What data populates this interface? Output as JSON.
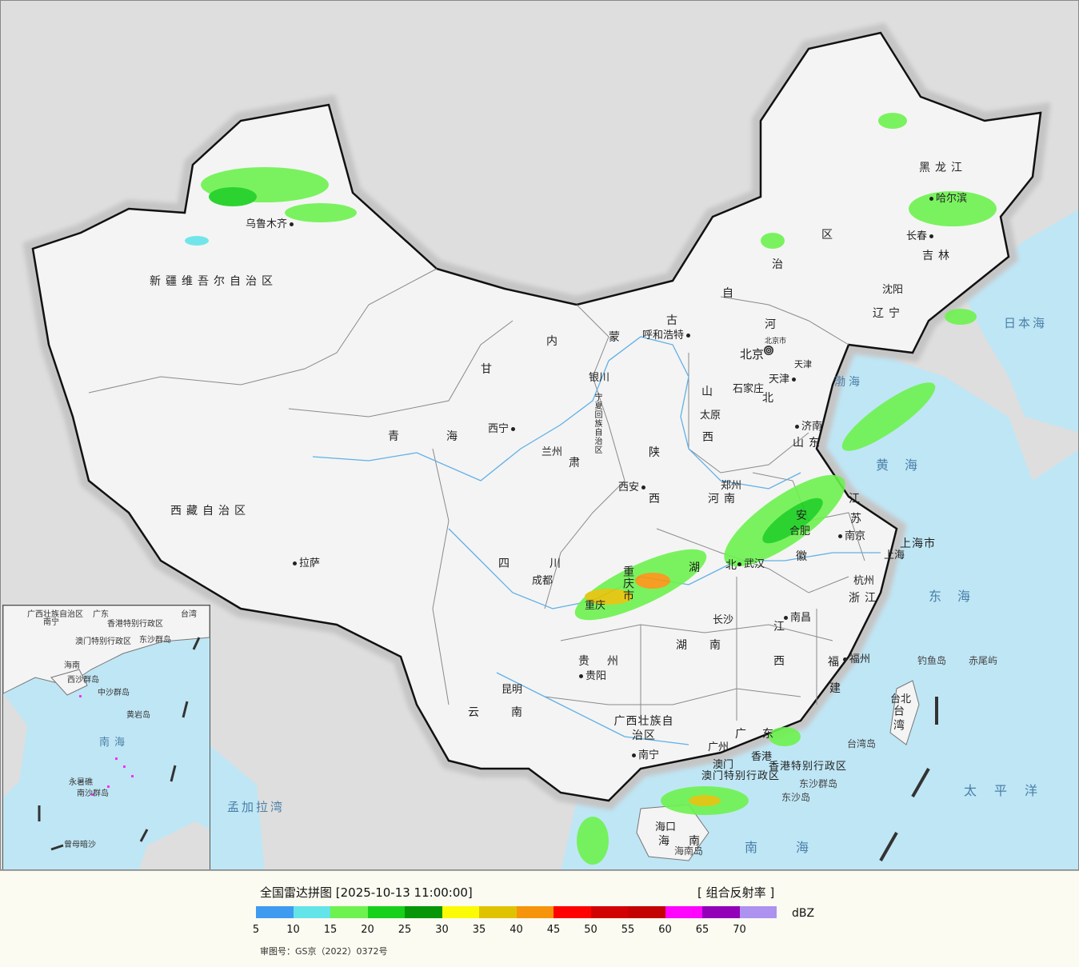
{
  "colors": {
    "land": "#f4f4f4",
    "sea": "#bfe6f5",
    "foreign": "#dedede",
    "border": "#111111",
    "province_border": "#8a8a8a",
    "river": "#5fb0e6",
    "panel_bg": "#fbfbf1"
  },
  "cities": {
    "urumqi": "乌鲁木齐",
    "harbin": "哈尔滨",
    "changchun": "长春",
    "shenyang": "沈阳",
    "hohhot": "呼和浩特",
    "beijing": "北京",
    "beijing_city": "北京市",
    "tianjin": "天津",
    "tianjin_city": "天津",
    "shijiazhuang": "石家庄",
    "taiyuan": "太原",
    "jinan": "济南",
    "yinchuan": "银川",
    "xining": "西宁",
    "lanzhou": "兰州",
    "xian": "西安",
    "zhengzhou": "郑州",
    "hefei": "合肥",
    "nanjing": "南京",
    "shanghai": "上海",
    "hangzhou": "杭州",
    "wuhan": "武汉",
    "chengdu": "成都",
    "chongqing": "重庆",
    "lhasa": "拉萨",
    "changsha": "长沙",
    "nanchang": "南昌",
    "fuzhou": "福州",
    "guiyang": "贵阳",
    "kunming": "昆明",
    "nanning": "南宁",
    "guangzhou": "广州",
    "hongkong": "香港",
    "macau": "澳门",
    "haikou": "海口",
    "taipei": "台北"
  },
  "provinces": {
    "xinjiang": "新疆维吾尔自治区",
    "xizang": "西藏自治区",
    "qinghai_1": "青",
    "qinghai_2": "海",
    "gansu_1": "甘",
    "gansu_2": "肃",
    "neimenggu_1": "内",
    "neimenggu_2": "蒙",
    "neimenggu_3": "古",
    "neimenggu_4": "自",
    "neimenggu_5": "治",
    "neimenggu_6": "区",
    "heilongjiang": "黑龙江",
    "jilin": "吉林",
    "liaoning": "辽宁",
    "hebei_1": "河",
    "hebei_2": "北",
    "shanxi_1": "山",
    "shanxi_2": "西",
    "shandong": "山东",
    "shaanxi_1": "陕",
    "shaanxi_2": "西",
    "ningxia": "宁夏回族自治区",
    "henan": "河南",
    "jiangsu_1": "江",
    "jiangsu_2": "苏",
    "anhui_1": "安",
    "anhui_2": "徽",
    "shanghai_city": "上海市",
    "zhejiang": "浙江",
    "hubei_1": "湖",
    "hubei_2": "北",
    "chongqing_city": "重庆市",
    "sichuan": "四川",
    "hunan": "湖南",
    "jiangxi_1": "江",
    "jiangxi_2": "西",
    "fujian_1": "福",
    "fujian_2": "建",
    "guizhou": "贵州",
    "yunnan": "云南",
    "guangxi": "广西壮族自治区",
    "guangdong": "广东",
    "hk_sar": "香港特别行政区",
    "macau_sar": "澳门特别行政区",
    "hainan_1": "海",
    "hainan_2": "南",
    "hainan_island": "海南岛",
    "taiwan": "台湾"
  },
  "seas": {
    "bohai": "渤海",
    "huanghai": "黄海",
    "donghai": "东海",
    "nanhai": "南海",
    "japan_sea": "日本海",
    "pacific": "太平洋",
    "bengal": "孟加拉湾"
  },
  "islands": {
    "diaoyu": "钓鱼岛",
    "chiwei": "赤尾屿",
    "taiwan_island": "台湾岛",
    "dongsha_group": "东沙群岛",
    "dongsha": "东沙岛"
  },
  "inset": {
    "guangxi": "广西壮族自治区",
    "nanning": "南宁",
    "guangdong": "广东",
    "hk": "香港特别行政区",
    "macau": "澳门特别行政区",
    "taiwan": "台湾",
    "dongsha": "东沙群岛",
    "hainan": "海南",
    "xisha": "西沙群岛",
    "zhongsha": "中沙群岛",
    "huangyan": "黄岩岛",
    "nansha": "南沙群岛",
    "yongshu": "永暑礁",
    "zengmu": "曾母暗沙",
    "nanhai": "南海"
  },
  "legend": {
    "title": "全国雷达拼图 [2025-10-13 11:00:00]",
    "product": "[ 组合反射率 ]",
    "unit": "dBZ",
    "ticks": [
      "5",
      "10",
      "15",
      "20",
      "25",
      "30",
      "35",
      "40",
      "45",
      "50",
      "55",
      "60",
      "65",
      "70"
    ],
    "colors": [
      "#3f9bf0",
      "#63e4e9",
      "#6df24f",
      "#16d01a",
      "#079607",
      "#fbfb06",
      "#e0c300",
      "#f6940c",
      "#fe0202",
      "#d20202",
      "#c30201",
      "#fe05fe",
      "#9201b7",
      "#ad92ef"
    ],
    "approval": "审图号：GS京（2022）0372号"
  },
  "radar": {
    "timestamp": "2025-10-13 11:00:00",
    "product": "组合反射率"
  }
}
